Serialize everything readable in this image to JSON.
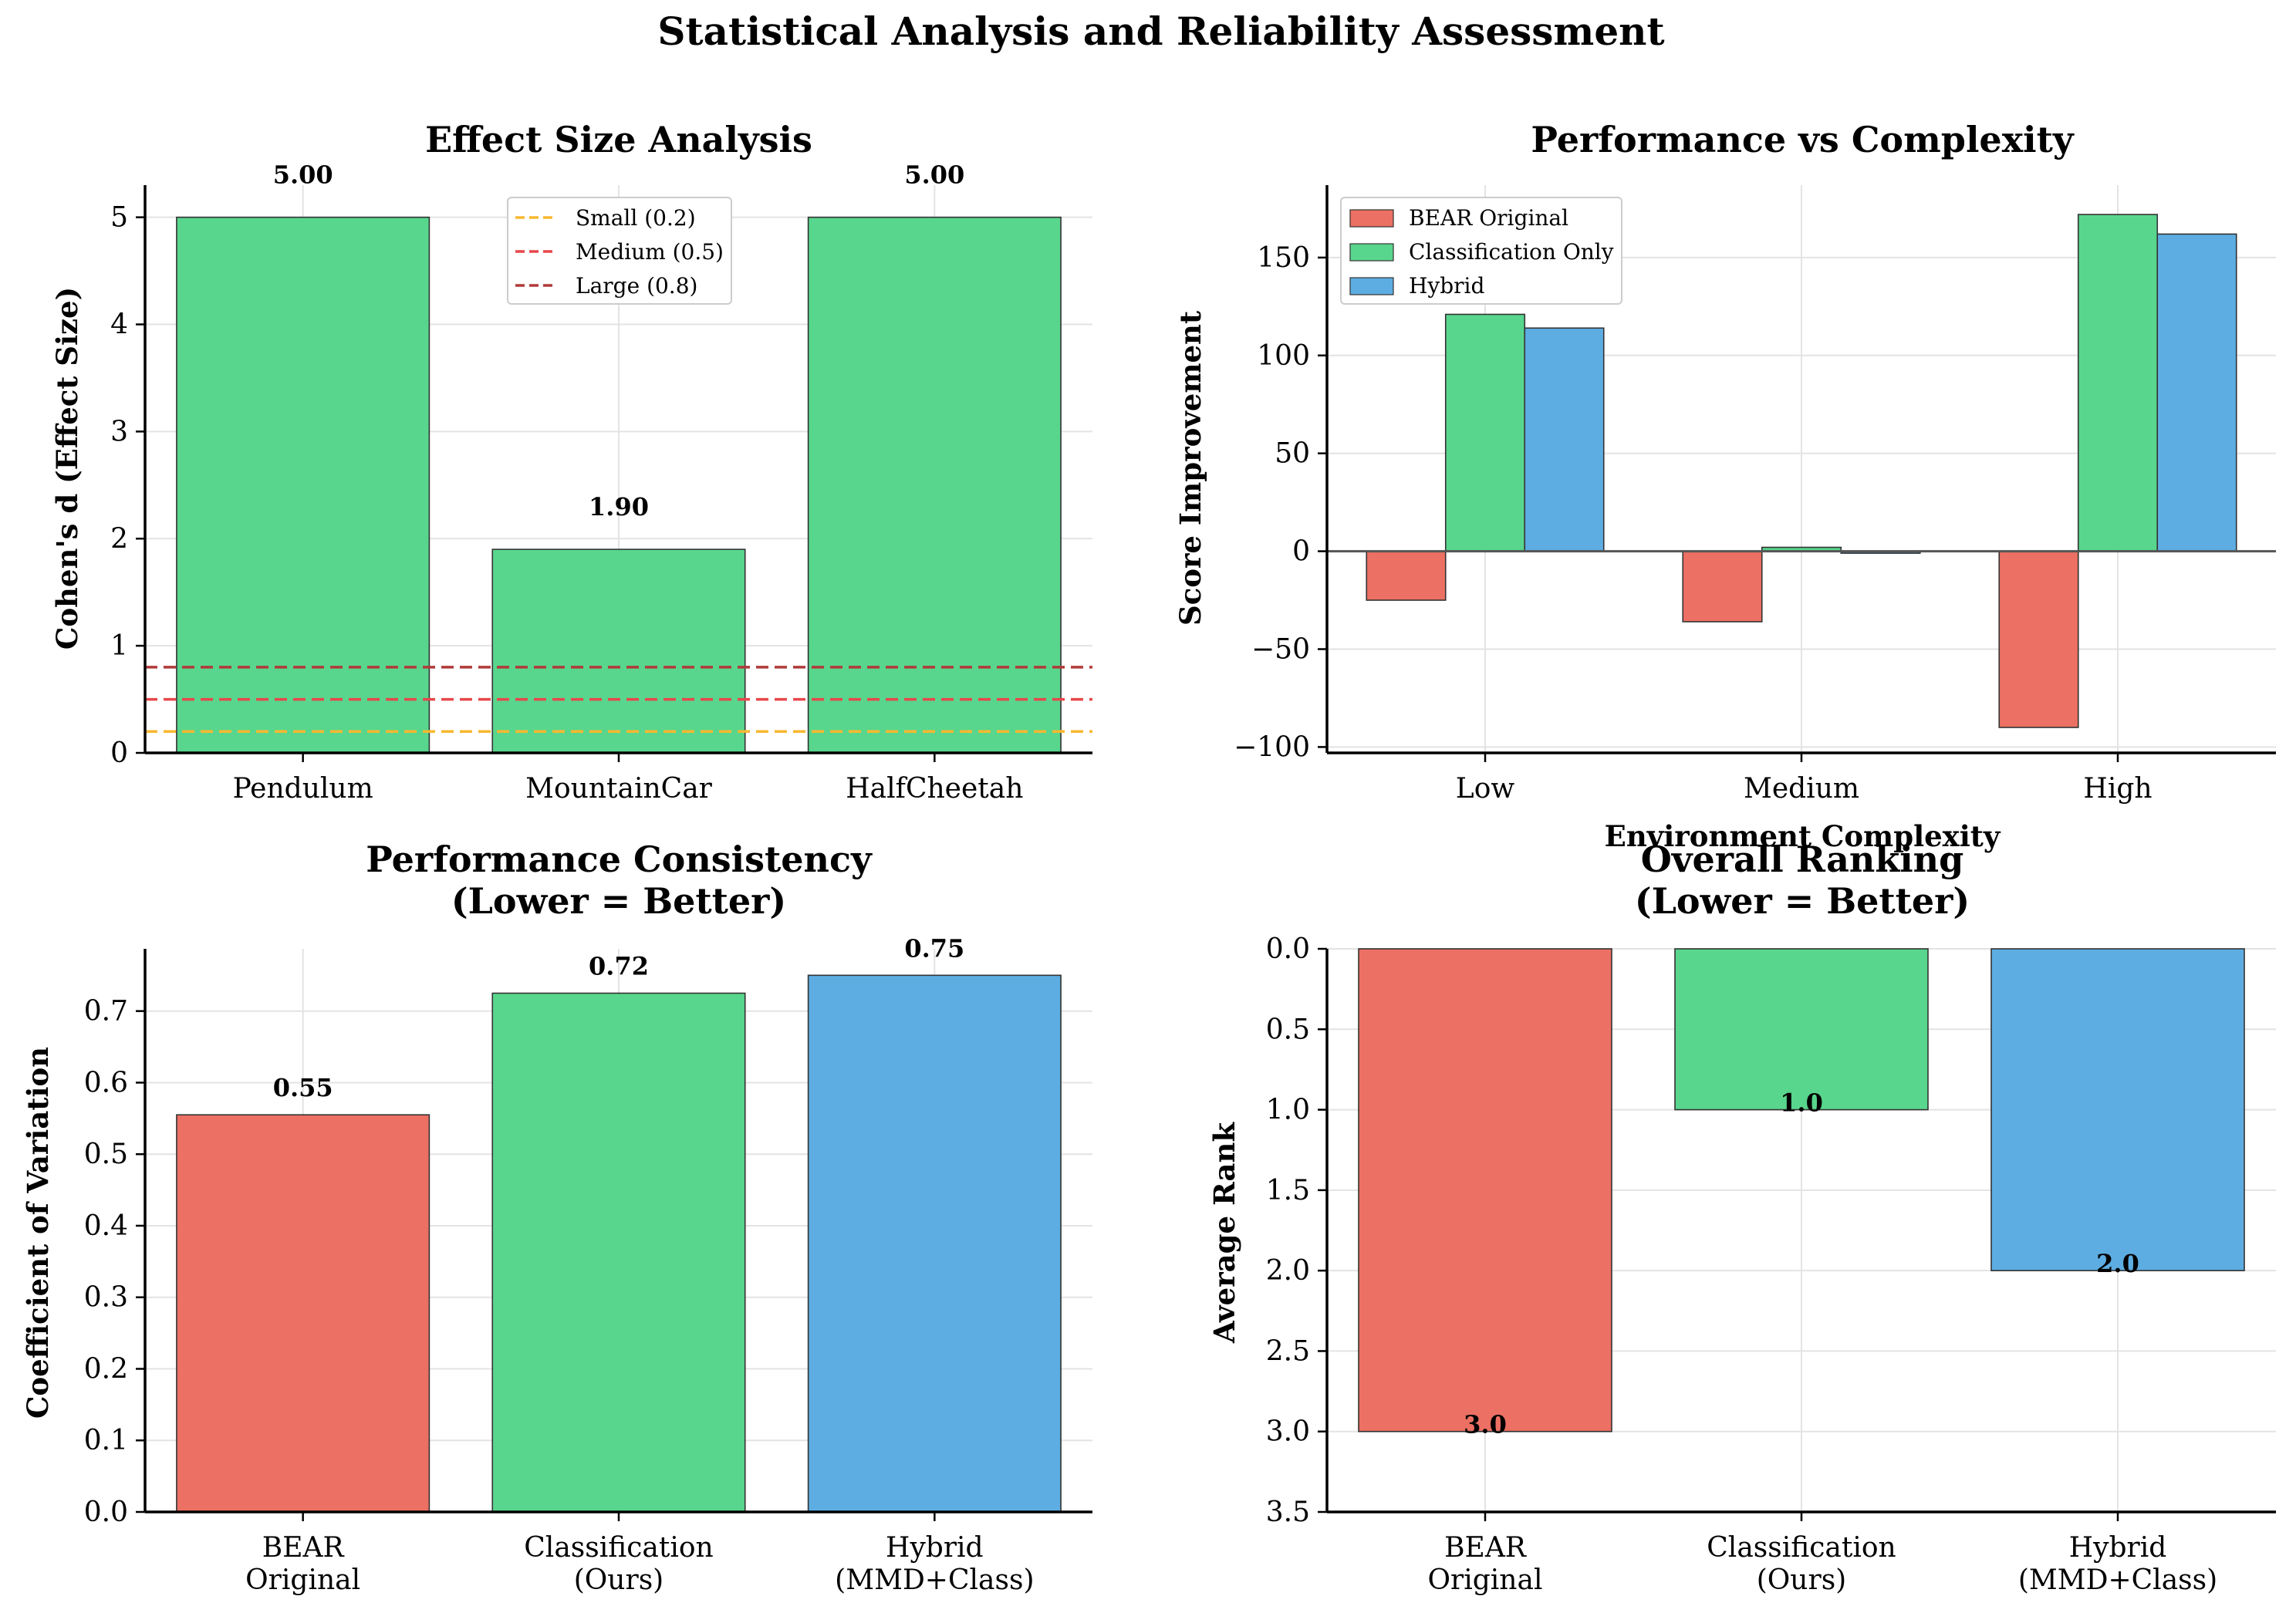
{
  "figure_title": "Statistical Analysis and Reliability Assessment",
  "colors": {
    "red": "#EC7063",
    "green": "#58D68D",
    "blue": "#5DADE2",
    "small": "#F8B830",
    "medium": "#E8474C",
    "large": "#B03A3A"
  },
  "chart_data": [
    {
      "type": "bar",
      "title": "Effect Size Analysis",
      "xlabel": "",
      "ylabel": "Cohen's d (Effect Size)",
      "categories": [
        "Pendulum",
        "MountainCar",
        "HalfCheetah"
      ],
      "values": [
        5.0,
        1.9,
        5.0
      ],
      "value_labels": [
        "5.00",
        "1.90",
        "5.00"
      ],
      "ylim": [
        0,
        5.3
      ],
      "yticks": [
        0,
        1,
        2,
        3,
        4,
        5
      ],
      "ytick_labels": [
        "0",
        "1",
        "2",
        "3",
        "4",
        "5"
      ],
      "reference_lines": [
        {
          "label": "Small (0.2)",
          "value": 0.2,
          "color": "#F8B830"
        },
        {
          "label": "Medium (0.5)",
          "value": 0.5,
          "color": "#E8474C"
        },
        {
          "label": "Large (0.8)",
          "value": 0.8,
          "color": "#B03A3A"
        }
      ],
      "legend_position": "upper-center"
    },
    {
      "type": "bar",
      "title": "Performance vs Complexity",
      "xlabel": "Environment Complexity",
      "ylabel": "Score Improvement",
      "categories": [
        "Low",
        "Medium",
        "High"
      ],
      "series": [
        {
          "name": "BEAR Original",
          "color": "#EC7063",
          "values": [
            -25,
            -36,
            -90
          ]
        },
        {
          "name": "Classification Only",
          "color": "#58D68D",
          "values": [
            121,
            2,
            172
          ]
        },
        {
          "name": "Hybrid",
          "color": "#5DADE2",
          "values": [
            114,
            -1,
            162
          ]
        }
      ],
      "ylim": [
        -103,
        187
      ],
      "yticks": [
        -100,
        -50,
        0,
        50,
        100,
        150
      ],
      "ytick_labels": [
        "−100",
        "−50",
        "0",
        "50",
        "100",
        "150"
      ],
      "legend_position": "upper-left"
    },
    {
      "type": "bar",
      "title_lines": [
        "Performance Consistency",
        "(Lower = Better)"
      ],
      "xlabel": "",
      "ylabel": "Coefficient of Variation",
      "categories": [
        [
          "BEAR",
          "Original"
        ],
        [
          "Classification",
          "(Ours)"
        ],
        [
          "Hybrid",
          "(MMD+Class)"
        ]
      ],
      "values": [
        0.555,
        0.725,
        0.75
      ],
      "value_labels": [
        "0.55",
        "0.72",
        "0.75"
      ],
      "colors": [
        "#EC7063",
        "#58D68D",
        "#5DADE2"
      ],
      "ylim": [
        0,
        0.787
      ],
      "yticks": [
        0,
        0.1,
        0.2,
        0.3,
        0.4,
        0.5,
        0.6,
        0.7
      ],
      "ytick_labels": [
        "0.0",
        "0.1",
        "0.2",
        "0.3",
        "0.4",
        "0.5",
        "0.6",
        "0.7"
      ]
    },
    {
      "type": "bar",
      "title_lines": [
        "Overall Ranking",
        "(Lower = Better)"
      ],
      "xlabel": "",
      "ylabel": "Average Rank",
      "categories": [
        [
          "BEAR",
          "Original"
        ],
        [
          "Classification",
          "(Ours)"
        ],
        [
          "Hybrid",
          "(MMD+Class)"
        ]
      ],
      "values": [
        3.0,
        1.0,
        2.0
      ],
      "value_labels": [
        "3.0",
        "1.0",
        "2.0"
      ],
      "colors": [
        "#EC7063",
        "#58D68D",
        "#5DADE2"
      ],
      "ylim": [
        0,
        3.5
      ],
      "y_inverted": true,
      "yticks": [
        0,
        0.5,
        1.0,
        1.5,
        2.0,
        2.5,
        3.0,
        3.5
      ],
      "ytick_labels": [
        "0.0",
        "0.5",
        "1.0",
        "1.5",
        "2.0",
        "2.5",
        "3.0",
        "3.5"
      ]
    }
  ]
}
